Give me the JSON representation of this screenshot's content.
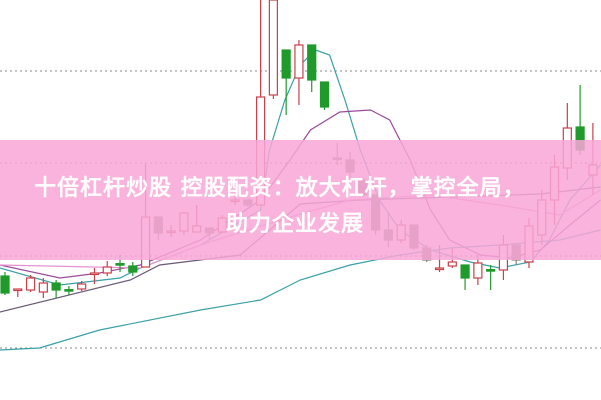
{
  "banner": {
    "line1": "十倍杠杆炒股 控股配资：放大杠杆，掌控全局，",
    "line2": "助力企业发展",
    "color": "#f8a6d6"
  },
  "chart_data": {
    "type": "candlestick",
    "title": "",
    "xlabel": "",
    "ylabel": "",
    "ylim": [
      0,
      100
    ],
    "grid": true,
    "gridlines": [
      82.25,
      59.25,
      36,
      13
    ],
    "colors": {
      "up": "#c8404a",
      "down": "#1f9a2b",
      "down_alt": "#8a8079",
      "grid": "#888888"
    },
    "candles": [
      {
        "o": 31,
        "c": 26.75,
        "h": 32,
        "l": 26.25,
        "k": "down"
      },
      {
        "o": 27.5,
        "c": 27.75,
        "h": 27.75,
        "l": 25.75,
        "k": "up"
      },
      {
        "o": 27.5,
        "c": 30.5,
        "h": 31.25,
        "l": 27,
        "k": "up"
      },
      {
        "o": 27,
        "c": 29.25,
        "h": 30.5,
        "l": 25.5,
        "k": "up"
      },
      {
        "o": 29.25,
        "c": 27.5,
        "h": 30,
        "l": 25.5,
        "k": "down"
      },
      {
        "o": 27.6,
        "c": 27.5,
        "h": 28.5,
        "l": 26.25,
        "k": "down"
      },
      {
        "o": 27.75,
        "c": 29,
        "h": 29.75,
        "l": 27.25,
        "k": "up"
      },
      {
        "o": 31.6,
        "c": 31.75,
        "h": 33,
        "l": 29,
        "k": "up"
      },
      {
        "o": 31.75,
        "c": 33.25,
        "h": 34.75,
        "l": 31,
        "k": "up"
      },
      {
        "o": 34.1,
        "c": 34,
        "h": 36.25,
        "l": 32,
        "k": "down"
      },
      {
        "o": 33.5,
        "c": 32,
        "h": 34.5,
        "l": 31,
        "k": "down"
      },
      {
        "o": 33.25,
        "c": 45.75,
        "h": 59.25,
        "l": 33.25,
        "k": "up"
      },
      {
        "o": 45.75,
        "c": 41.75,
        "h": 45.75,
        "l": 40,
        "k": "down_alt"
      },
      {
        "o": 42.1,
        "c": 42.25,
        "h": 43.75,
        "l": 40.75,
        "k": "up"
      },
      {
        "o": 42.25,
        "c": 46.75,
        "h": 46.75,
        "l": 41.25,
        "k": "up"
      },
      {
        "o": 42,
        "c": 43.5,
        "h": 48.75,
        "l": 42,
        "k": "up"
      },
      {
        "o": 43,
        "c": 41.75,
        "h": 43,
        "l": 40,
        "k": "down_alt"
      },
      {
        "o": 42,
        "c": 45.5,
        "h": 46.25,
        "l": 41.75,
        "k": "up"
      },
      {
        "o": 49.9,
        "c": 50,
        "h": 53.75,
        "l": 48.75,
        "k": "up"
      },
      {
        "o": 50,
        "c": 48.75,
        "h": 50,
        "l": 48.25,
        "k": "down_alt"
      },
      {
        "o": 48.75,
        "c": 75.75,
        "h": 100,
        "l": 48.75,
        "k": "up"
      },
      {
        "o": 76.25,
        "c": 100,
        "h": 100,
        "l": 75.25,
        "k": "up"
      },
      {
        "o": 87.5,
        "c": 80.5,
        "h": 87.5,
        "l": 71.25,
        "k": "down"
      },
      {
        "o": 80.5,
        "c": 88.75,
        "h": 90,
        "l": 73.75,
        "k": "up"
      },
      {
        "o": 88.75,
        "c": 80,
        "h": 88.75,
        "l": 77,
        "k": "down"
      },
      {
        "o": 79.5,
        "c": 73.25,
        "h": 79.5,
        "l": 72.5,
        "k": "down"
      },
      {
        "o": 60.5,
        "c": 60.25,
        "h": 64.25,
        "l": 58.75,
        "k": "down_alt"
      },
      {
        "o": 60,
        "c": 57,
        "h": 62,
        "l": 55.5,
        "k": "down_alt"
      },
      {
        "o": 55,
        "c": 51.25,
        "h": 55.5,
        "l": 50.75,
        "k": "down_alt"
      },
      {
        "o": 51.25,
        "c": 42.5,
        "h": 51.25,
        "l": 41.25,
        "k": "down_alt"
      },
      {
        "o": 42.5,
        "c": 40,
        "h": 47,
        "l": 38.25,
        "k": "down_alt"
      },
      {
        "o": 40,
        "c": 43.75,
        "h": 45,
        "l": 39.25,
        "k": "up"
      },
      {
        "o": 43.75,
        "c": 38,
        "h": 43.75,
        "l": 37.5,
        "k": "down_alt"
      },
      {
        "o": 38,
        "c": 35,
        "h": 38.75,
        "l": 34.5,
        "k": "down_alt"
      },
      {
        "o": 32.9,
        "c": 33,
        "h": 38.75,
        "l": 32,
        "k": "up"
      },
      {
        "o": 33.5,
        "c": 34.5,
        "h": 38,
        "l": 33,
        "k": "up"
      },
      {
        "o": 33.75,
        "c": 30.5,
        "h": 33.75,
        "l": 27.5,
        "k": "down"
      },
      {
        "o": 30.5,
        "c": 34.25,
        "h": 36.25,
        "l": 28.75,
        "k": "up"
      },
      {
        "o": 32.6,
        "c": 32.5,
        "h": 33.75,
        "l": 27.5,
        "k": "down"
      },
      {
        "o": 32.5,
        "c": 38.75,
        "h": 41.25,
        "l": 30,
        "k": "up"
      },
      {
        "o": 38.75,
        "c": 35,
        "h": 39.25,
        "l": 33.75,
        "k": "down_alt"
      },
      {
        "o": 34.5,
        "c": 43.5,
        "h": 45.5,
        "l": 33,
        "k": "up"
      },
      {
        "o": 41.25,
        "c": 50,
        "h": 52.5,
        "l": 38.75,
        "k": "up"
      },
      {
        "o": 50,
        "c": 58.25,
        "h": 61.25,
        "l": 43.75,
        "k": "up"
      },
      {
        "o": 58,
        "c": 68,
        "h": 74.25,
        "l": 55,
        "k": "up"
      },
      {
        "o": 68.25,
        "c": 62.5,
        "h": 78.75,
        "l": 61.25,
        "k": "down"
      },
      {
        "o": 56.25,
        "c": 58.75,
        "h": 69.25,
        "l": 51.25,
        "k": "up"
      }
    ],
    "lines": [
      {
        "color": "#3aa0a8",
        "points": [
          [
            -0.4,
            33
          ],
          [
            4.3,
            28.75
          ],
          [
            9,
            30.5
          ],
          [
            10.6,
            33
          ],
          [
            15.3,
            38.75
          ],
          [
            20,
            47.5
          ],
          [
            20.7,
            62.5
          ],
          [
            21.9,
            75
          ],
          [
            23.1,
            83.75
          ],
          [
            24.3,
            87.5
          ],
          [
            25.4,
            86.25
          ],
          [
            26.6,
            75
          ],
          [
            27.8,
            62.5
          ],
          [
            29.3,
            50
          ],
          [
            30.9,
            42.5
          ],
          [
            33.3,
            37.5
          ],
          [
            36.4,
            34.5
          ],
          [
            38.7,
            33
          ],
          [
            41.1,
            34.5
          ],
          [
            42.6,
            40
          ],
          [
            44.2,
            50
          ],
          [
            46.6,
            58.75
          ]
        ]
      },
      {
        "color": "#9a4a9a",
        "points": [
          [
            -0.4,
            33.75
          ],
          [
            4.3,
            30.5
          ],
          [
            7.4,
            31.75
          ],
          [
            10.6,
            33.75
          ],
          [
            15.3,
            40
          ],
          [
            20,
            50
          ],
          [
            22.3,
            60
          ],
          [
            23.9,
            67.5
          ],
          [
            26.2,
            72
          ],
          [
            28.6,
            72.5
          ],
          [
            30.1,
            70
          ],
          [
            31.7,
            60
          ],
          [
            33.3,
            47.5
          ],
          [
            34.8,
            40
          ],
          [
            37.2,
            36.25
          ],
          [
            39.5,
            35.5
          ],
          [
            41.9,
            37.5
          ],
          [
            44.2,
            43.75
          ],
          [
            46.6,
            50
          ]
        ]
      },
      {
        "color": "#6a5a78",
        "points": [
          [
            -0.4,
            22
          ],
          [
            9.8,
            30
          ],
          [
            12.1,
            33.75
          ],
          [
            18.4,
            36.25
          ],
          [
            23.1,
            49
          ],
          [
            27.8,
            50
          ],
          [
            32.5,
            50.5
          ],
          [
            37.2,
            51
          ],
          [
            41.9,
            51.5
          ],
          [
            46.6,
            53.25
          ]
        ]
      },
      {
        "color": "#e890d0",
        "points": [
          [
            -0.4,
            33.75
          ],
          [
            10.6,
            33
          ],
          [
            15.3,
            38.75
          ],
          [
            21.5,
            45
          ],
          [
            27,
            50
          ],
          [
            33.3,
            51.25
          ],
          [
            38.7,
            48.75
          ],
          [
            43.4,
            46.25
          ],
          [
            46.6,
            52.5
          ]
        ]
      },
      {
        "color": "#3aa0a8",
        "points": [
          [
            -0.4,
            12.5
          ],
          [
            2.7,
            13
          ],
          [
            7.4,
            17.5
          ],
          [
            15.3,
            22.5
          ],
          [
            20,
            25
          ],
          [
            23.1,
            30
          ],
          [
            27,
            33.75
          ],
          [
            30.9,
            36.25
          ],
          [
            34.8,
            38
          ],
          [
            38.7,
            38.75
          ],
          [
            43.4,
            40
          ],
          [
            46.6,
            42.5
          ]
        ]
      }
    ]
  }
}
